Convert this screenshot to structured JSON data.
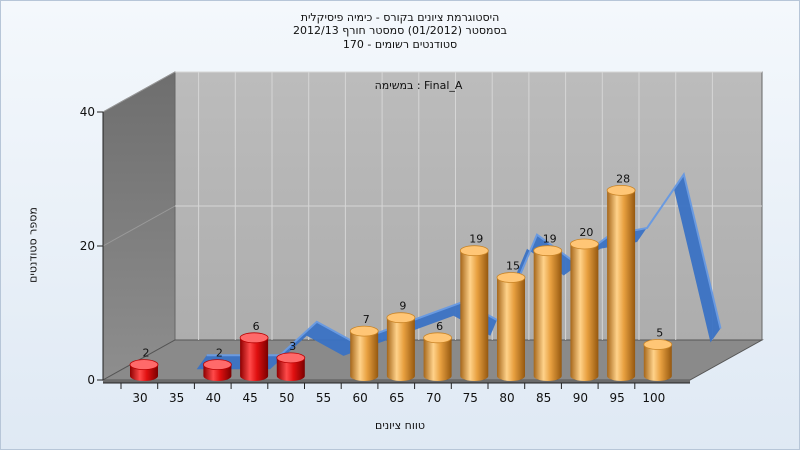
{
  "chart_data": {
    "type": "bar",
    "title_lines": [
      "היסטוגרמת ציונים בקורס - כימיה פיסיקלית",
      "בסמסטר  (01/2012)  סמסטר חורף 2012/13",
      "סטודנטים רשומים - 170"
    ],
    "annotation": "במשימה : Final_A",
    "xlabel": "טווח ציונים",
    "ylabel": "מספר סטודנטים",
    "x_ticks": [
      "30",
      "35",
      "40",
      "45",
      "50",
      "55",
      "60",
      "65",
      "70",
      "75",
      "80",
      "85",
      "90",
      "95",
      "100"
    ],
    "y_ticks": [
      "0",
      "20",
      "40"
    ],
    "ylim": [
      0,
      40
    ],
    "grid": true,
    "bars": [
      {
        "category": "30",
        "value": 2,
        "label": "2",
        "color": "#e01010"
      },
      {
        "category": "40",
        "value": 2,
        "label": "2",
        "color": "#e01010"
      },
      {
        "category": "45",
        "value": 6,
        "label": "6",
        "color": "#e01010"
      },
      {
        "category": "50",
        "value": 3,
        "label": "3",
        "color": "#e01010"
      },
      {
        "category": "60",
        "value": 7,
        "label": "7",
        "color": "#e8a040"
      },
      {
        "category": "65",
        "value": 9,
        "label": "9",
        "color": "#e8a040"
      },
      {
        "category": "70",
        "value": 6,
        "label": "6",
        "color": "#e8a040"
      },
      {
        "category": "75",
        "value": 19,
        "label": "19",
        "color": "#e8a040"
      },
      {
        "category": "80",
        "value": 15,
        "label": "15",
        "color": "#e8a040"
      },
      {
        "category": "85",
        "value": 19,
        "label": "19",
        "color": "#e8a040"
      },
      {
        "category": "90",
        "value": 20,
        "label": "20",
        "color": "#e8a040"
      },
      {
        "category": "95",
        "value": 28,
        "label": "28",
        "color": "#e8a040"
      },
      {
        "category": "100",
        "value": 5,
        "label": "5",
        "color": "#e8a040"
      }
    ],
    "trend_line": {
      "x": [
        "35",
        "40",
        "45",
        "50",
        "55",
        "60",
        "65",
        "70",
        "75",
        "80",
        "85",
        "90",
        "95",
        "100",
        "105"
      ],
      "y": [
        1,
        1,
        1,
        6,
        3,
        5,
        7,
        9,
        6,
        19,
        15,
        19,
        20,
        28,
        5
      ],
      "color": "#3a72c4"
    },
    "colors": {
      "low_bars": "#e01010",
      "high_bars": "#e8a040",
      "trend": "#3a72c4",
      "wall_back": "#b4b4b4",
      "wall_side": "#7f7f7f",
      "floor": "#8a8a8a"
    }
  }
}
